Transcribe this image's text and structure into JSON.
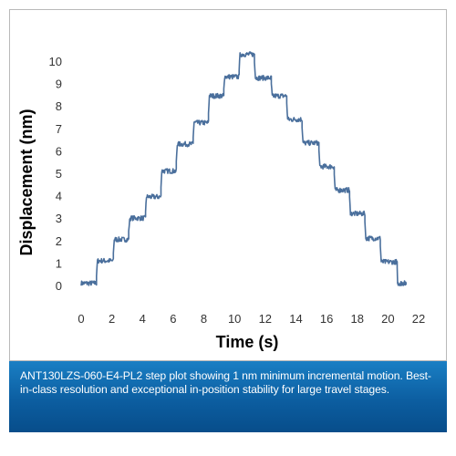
{
  "chart_data": {
    "type": "line",
    "title": "",
    "xlabel": "Time (s)",
    "ylabel": "Displacement (nm)",
    "xlim": [
      0,
      22
    ],
    "ylim": [
      0,
      10
    ],
    "xticks": [
      0,
      2,
      4,
      6,
      8,
      10,
      12,
      14,
      16,
      18,
      20,
      22
    ],
    "yticks": [
      0,
      1,
      2,
      3,
      4,
      5,
      6,
      7,
      8,
      9,
      10
    ],
    "grid": false,
    "series": [
      {
        "color": "#4a6f9c",
        "steps": [
          {
            "t_start": 0.0,
            "t_end": 1.0,
            "level": 0.1
          },
          {
            "t_start": 1.0,
            "t_end": 2.1,
            "level": 1.1
          },
          {
            "t_start": 2.1,
            "t_end": 3.1,
            "level": 2.05
          },
          {
            "t_start": 3.1,
            "t_end": 4.2,
            "level": 3.0
          },
          {
            "t_start": 4.2,
            "t_end": 5.2,
            "level": 3.95
          },
          {
            "t_start": 5.2,
            "t_end": 6.2,
            "level": 5.1
          },
          {
            "t_start": 6.2,
            "t_end": 7.3,
            "level": 6.3
          },
          {
            "t_start": 7.3,
            "t_end": 8.3,
            "level": 7.25
          },
          {
            "t_start": 8.3,
            "t_end": 9.3,
            "level": 8.45
          },
          {
            "t_start": 9.3,
            "t_end": 10.3,
            "level": 9.3
          },
          {
            "t_start": 10.3,
            "t_end": 11.3,
            "level": 10.3
          },
          {
            "t_start": 11.3,
            "t_end": 12.4,
            "level": 9.25
          },
          {
            "t_start": 12.4,
            "t_end": 13.4,
            "level": 8.45
          },
          {
            "t_start": 13.4,
            "t_end": 14.4,
            "level": 7.4
          },
          {
            "t_start": 14.4,
            "t_end": 15.5,
            "level": 6.35
          },
          {
            "t_start": 15.5,
            "t_end": 16.5,
            "level": 5.3
          },
          {
            "t_start": 16.5,
            "t_end": 17.5,
            "level": 4.25
          },
          {
            "t_start": 17.5,
            "t_end": 18.5,
            "level": 3.2
          },
          {
            "t_start": 18.5,
            "t_end": 19.5,
            "level": 2.1
          },
          {
            "t_start": 19.5,
            "t_end": 20.6,
            "level": 1.05
          },
          {
            "t_start": 20.6,
            "t_end": 21.2,
            "level": 0.1
          }
        ]
      }
    ]
  },
  "caption": {
    "text": "ANT130LZS-060-E4-PL2 step plot showing 1 nm minimum incremental motion. Best-in-class resolution and exceptional in-position stability for large travel stages."
  }
}
